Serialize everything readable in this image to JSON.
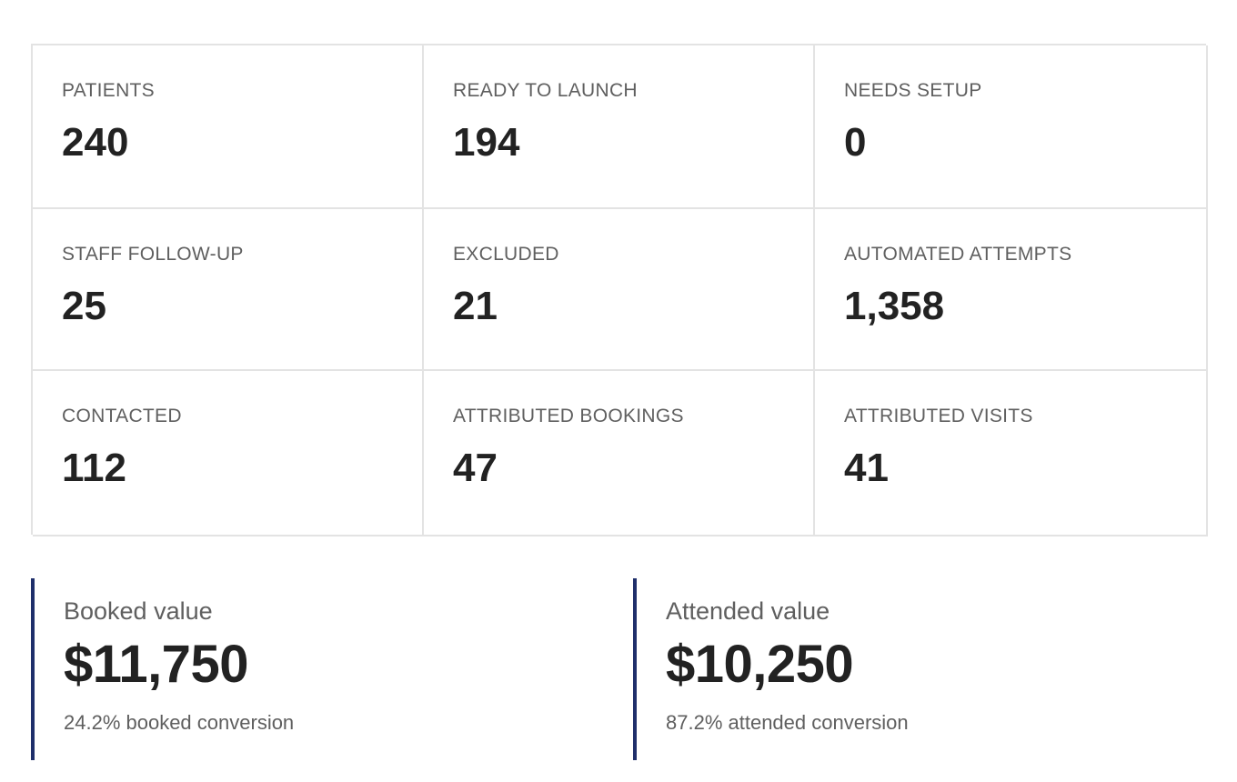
{
  "stats": [
    {
      "label": "PATIENTS",
      "value": "240"
    },
    {
      "label": "READY TO LAUNCH",
      "value": "194"
    },
    {
      "label": "NEEDS SETUP",
      "value": "0"
    },
    {
      "label": "STAFF FOLLOW-UP",
      "value": "25"
    },
    {
      "label": "EXCLUDED",
      "value": "21"
    },
    {
      "label": "AUTOMATED ATTEMPTS",
      "value": "1,358"
    },
    {
      "label": "CONTACTED",
      "value": "112"
    },
    {
      "label": "ATTRIBUTED BOOKINGS",
      "value": "47"
    },
    {
      "label": "ATTRIBUTED VISITS",
      "value": "41"
    }
  ],
  "values": {
    "booked": {
      "label": "Booked value",
      "amount": "$11,750",
      "note": "24.2% booked conversion"
    },
    "attended": {
      "label": "Attended value",
      "amount": "$10,250",
      "note": "87.2% attended conversion"
    }
  },
  "colors": {
    "accent": "#1f2f6b",
    "border": "#e3e3e3",
    "label": "#5f5f5f",
    "text": "#222222"
  }
}
